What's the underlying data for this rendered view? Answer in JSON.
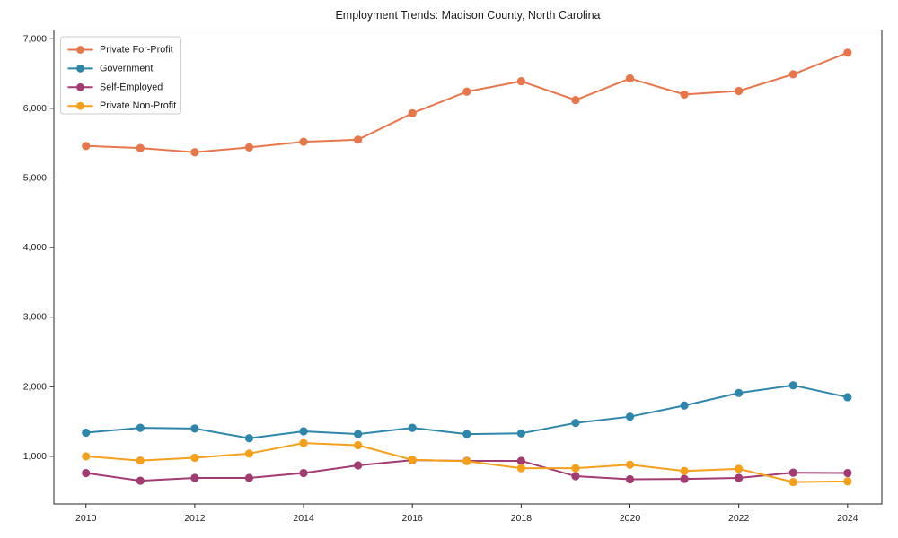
{
  "title": "Employment Trends: Madison County, North Carolina",
  "axis_color": "#262626",
  "legend_border_color": "#cccccc",
  "background_color": "#ffffff",
  "chart_data": {
    "type": "line",
    "title": "Employment Trends: Madison County, North Carolina",
    "xlabel": "",
    "ylabel": "",
    "grid": false,
    "legend_position": "upper left",
    "x": [
      2010,
      2011,
      2012,
      2013,
      2014,
      2015,
      2016,
      2017,
      2018,
      2019,
      2020,
      2021,
      2022,
      2023,
      2024
    ],
    "x_ticks": [
      2010,
      2012,
      2014,
      2016,
      2018,
      2020,
      2022,
      2024
    ],
    "y_ticks": [
      1000,
      2000,
      3000,
      4000,
      5000,
      6000,
      7000
    ],
    "y_tick_labels": [
      "1,000",
      "2,000",
      "3,000",
      "4,000",
      "5,000",
      "6,000",
      "7,000"
    ],
    "xlim": [
      2009.41,
      2024.63
    ],
    "ylim": [
      316,
      7126
    ],
    "series": [
      {
        "name": "Private For-Profit",
        "color": "#E8764B",
        "marker": "circle",
        "values": [
          5460,
          5430,
          5370,
          5440,
          5520,
          5550,
          5930,
          6240,
          6390,
          6120,
          6430,
          6200,
          6250,
          6490,
          6800
        ]
      },
      {
        "name": "Government",
        "color": "#2E86AB",
        "marker": "circle",
        "values": [
          1340,
          1410,
          1400,
          1260,
          1360,
          1320,
          1410,
          1320,
          1330,
          1480,
          1570,
          1730,
          1910,
          2020,
          1850
        ]
      },
      {
        "name": "Self-Employed",
        "color": "#A23B72",
        "marker": "circle",
        "values": [
          760,
          650,
          690,
          690,
          760,
          870,
          945,
          935,
          935,
          715,
          670,
          675,
          690,
          765,
          760
        ]
      },
      {
        "name": "Private Non-Profit",
        "color": "#F5A01B",
        "marker": "circle",
        "values": [
          1000,
          940,
          980,
          1040,
          1190,
          1160,
          950,
          930,
          830,
          830,
          880,
          790,
          820,
          630,
          640
        ]
      }
    ]
  }
}
